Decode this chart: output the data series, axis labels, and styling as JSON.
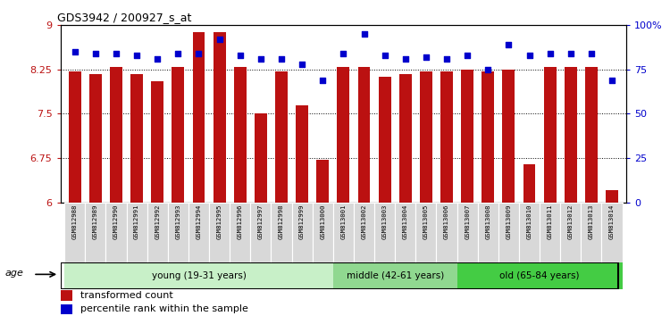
{
  "title": "GDS3942 / 200927_s_at",
  "samples": [
    "GSM812988",
    "GSM812989",
    "GSM812990",
    "GSM812991",
    "GSM812992",
    "GSM812993",
    "GSM812994",
    "GSM812995",
    "GSM812996",
    "GSM812997",
    "GSM812998",
    "GSM812999",
    "GSM813000",
    "GSM813001",
    "GSM813002",
    "GSM813003",
    "GSM813004",
    "GSM813005",
    "GSM813006",
    "GSM813007",
    "GSM813008",
    "GSM813009",
    "GSM813010",
    "GSM813011",
    "GSM813012",
    "GSM813013",
    "GSM813014"
  ],
  "transformed_count": [
    8.22,
    8.18,
    8.3,
    8.18,
    8.05,
    8.3,
    8.88,
    8.88,
    8.3,
    7.5,
    8.22,
    7.65,
    6.72,
    8.3,
    8.3,
    8.12,
    8.17,
    8.22,
    8.22,
    8.25,
    8.22,
    8.25,
    6.65,
    8.3,
    8.3,
    8.3,
    6.2
  ],
  "percentile_rank": [
    85,
    84,
    84,
    83,
    81,
    84,
    84,
    92,
    83,
    81,
    81,
    78,
    69,
    84,
    95,
    83,
    81,
    82,
    81,
    83,
    75,
    89,
    83,
    84,
    84,
    84,
    69
  ],
  "groups": [
    {
      "label": "young (19-31 years)",
      "start": 0,
      "end": 13,
      "color": "#c8f0c8"
    },
    {
      "label": "middle (42-61 years)",
      "start": 13,
      "end": 19,
      "color": "#90d890"
    },
    {
      "label": "old (65-84 years)",
      "start": 19,
      "end": 27,
      "color": "#44cc44"
    }
  ],
  "ylim_left": [
    6,
    9
  ],
  "ylim_right": [
    0,
    100
  ],
  "yticks_left": [
    6,
    6.75,
    7.5,
    8.25,
    9
  ],
  "yticks_right": [
    0,
    25,
    50,
    75,
    100
  ],
  "ytick_labels_right": [
    "0",
    "25",
    "50",
    "75",
    "100%"
  ],
  "bar_color": "#bb1111",
  "dot_color": "#0000cc",
  "bar_width": 0.6,
  "background_color": "#ffffff",
  "age_label": "age",
  "legend_bar_label": "transformed count",
  "legend_dot_label": "percentile rank within the sample"
}
